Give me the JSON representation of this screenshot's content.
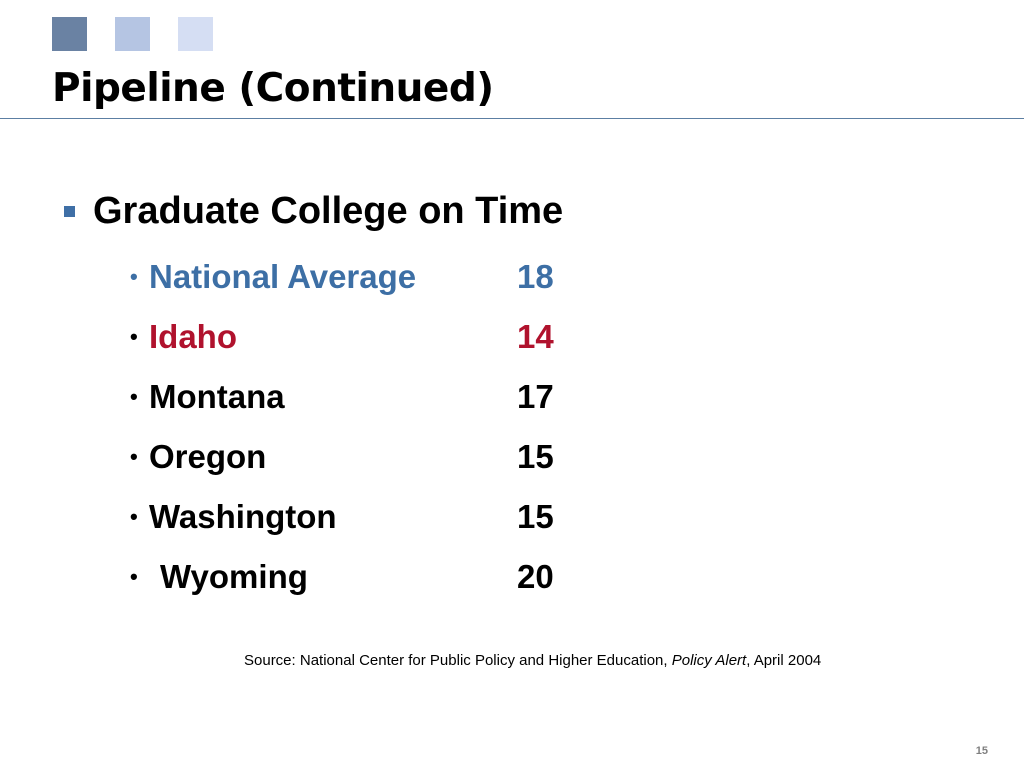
{
  "slide": {
    "title": "Pipeline (Continued)",
    "main_point": "Graduate College on Time",
    "items": [
      {
        "name": "National Average",
        "value": "18",
        "color": "#3d6fa5"
      },
      {
        "name": "Idaho",
        "value": "14",
        "color": "#b0122d"
      },
      {
        "name": "Montana",
        "value": "17",
        "color": "#000000"
      },
      {
        "name": "Oregon",
        "value": "15",
        "color": "#000000"
      },
      {
        "name": "Washington",
        "value": "15",
        "color": "#000000"
      },
      {
        "name": "Wyoming",
        "value": "20",
        "color": "#000000"
      }
    ],
    "source": {
      "prefix": "Source: National Center for Public Policy and Higher Education, ",
      "publication": "Policy Alert",
      "suffix": ", April 2004"
    },
    "page_number": "15"
  },
  "colors": {
    "accent_blue": "#3d6fa5",
    "highlight_red": "#b0122d",
    "title_rule": "#5c7fa3",
    "square_1": "#6a82a3",
    "square_2": "#b5c5e3",
    "square_3": "#d5def3"
  }
}
